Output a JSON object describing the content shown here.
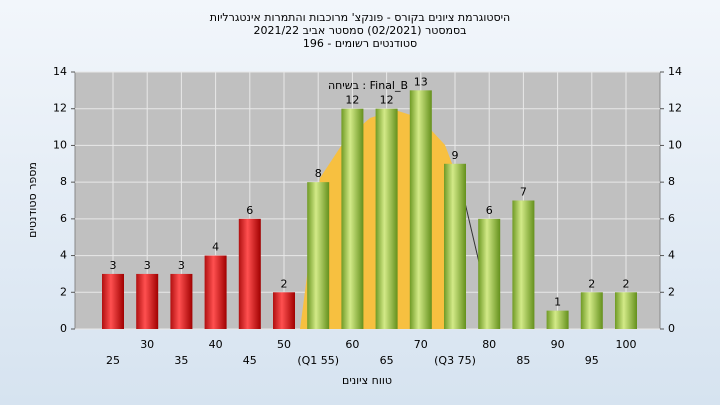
{
  "chart_data": {
    "type": "bar",
    "title": [
      "היסטוגרמת ציונים בקורס - פונקצ' מרוכבות והתמרות אינטגרליות",
      "בסמסטר  (02/2021)  סמסטר אביב 2021/22",
      "סטודנטים רשומים - 196"
    ],
    "annotation": "בשיחה : Final_B",
    "x_label": "טווח ציונים",
    "y_label": "מספר סטודנטים",
    "categories": [
      "25",
      "30",
      "35",
      "40",
      "45",
      "50",
      "(Q1 55)",
      "60",
      "65",
      "70",
      "(Q3 75)",
      "80",
      "85",
      "90",
      "95",
      "100"
    ],
    "values": [
      3,
      3,
      3,
      4,
      6,
      2,
      8,
      12,
      12,
      13,
      9,
      6,
      7,
      1,
      2,
      2
    ],
    "colors": [
      "red",
      "red",
      "red",
      "red",
      "red",
      "red",
      "green",
      "green",
      "green",
      "green",
      "green",
      "green",
      "green",
      "green",
      "green",
      "green"
    ],
    "ylim": [
      0,
      14
    ],
    "yticks": [
      0,
      2,
      4,
      6,
      8,
      10,
      12,
      14
    ],
    "grid": true
  }
}
